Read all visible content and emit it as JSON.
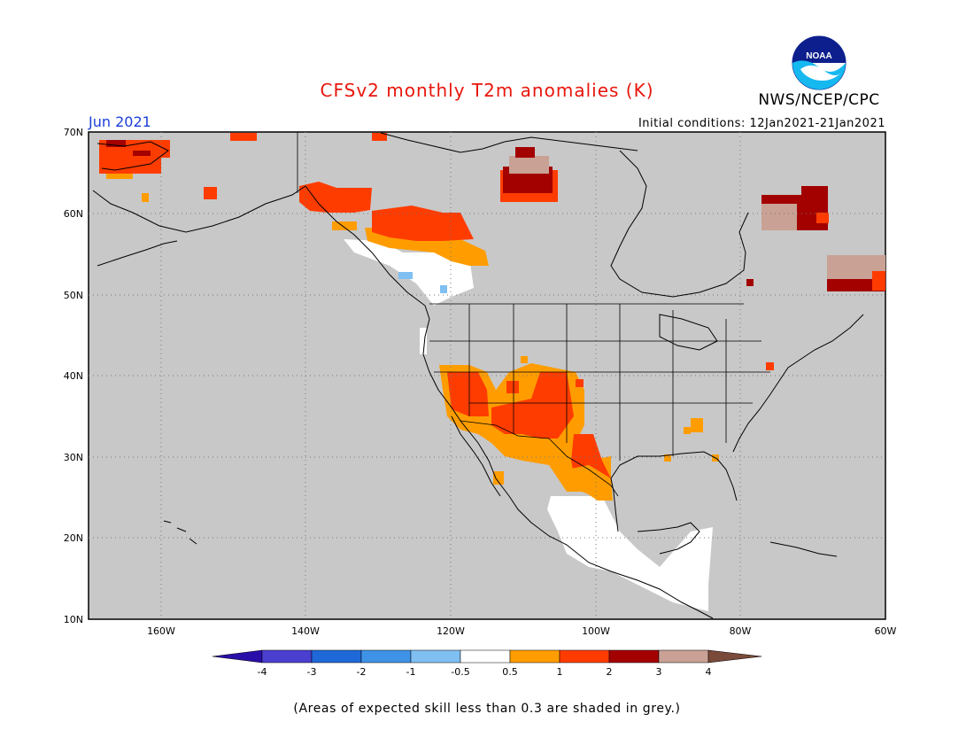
{
  "header": {
    "title": "CFSv2 monthly T2m anomalies (K)",
    "org": "NWS/NCEP/CPC",
    "logo_text": "NOAA",
    "valid_month": "Jun 2021",
    "initial_conditions": "Initial conditions: 12Jan2021-21Jan2021"
  },
  "map": {
    "lat_labels": [
      "70N",
      "60N",
      "50N",
      "40N",
      "30N",
      "20N",
      "10N"
    ],
    "lon_labels": [
      "160W",
      "140W",
      "120W",
      "100W",
      "80W",
      "60W"
    ],
    "no_skill_color": "#c8c8c8",
    "land_outline_color": "#000000",
    "regions": [
      {
        "name": "Alaska west coast",
        "category": "2 to 3"
      },
      {
        "name": "Yukon / northern BC",
        "category": "1 to 2"
      },
      {
        "name": "Southwest US",
        "category": "1 to 2"
      },
      {
        "name": "Texas / northeast Mexico",
        "category": "1 to 2"
      },
      {
        "name": "Mexico interior",
        "category": "-0.5 to 0.5"
      },
      {
        "name": "Quebec / Labrador",
        "category": "2 to 3"
      },
      {
        "name": "Newfoundland",
        "category": "3 to 4"
      },
      {
        "name": "Nunavut",
        "category": "2 to 3"
      }
    ]
  },
  "legend": {
    "labels": [
      "-4",
      "-3",
      "-2",
      "-1",
      "-0.5",
      "0.5",
      "1",
      "2",
      "3",
      "4"
    ],
    "colors": [
      "#2a0ea8",
      "#4a3fcf",
      "#1f68d8",
      "#3f93e6",
      "#7fbff2",
      "#ffffff",
      "#ff9d00",
      "#ff3c00",
      "#a30000",
      "#c9a195",
      "#7a4a3a"
    ]
  },
  "footnote": "(Areas of expected skill less than 0.3 are shaded in grey.)"
}
